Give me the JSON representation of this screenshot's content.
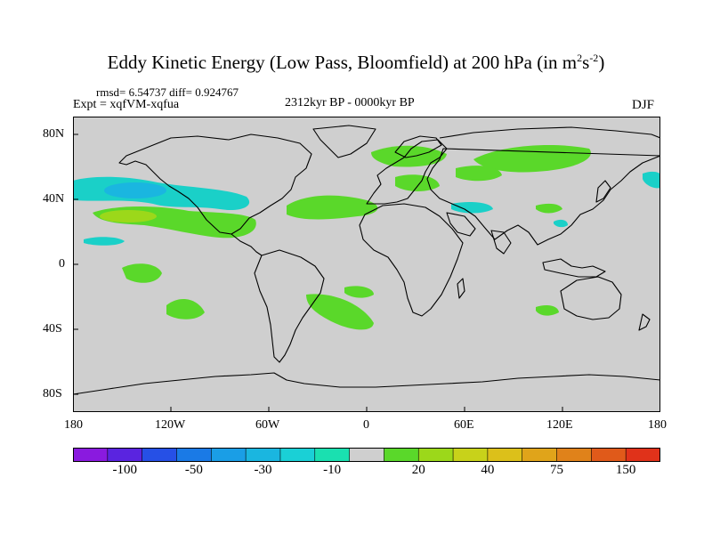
{
  "title": {
    "main": "Eddy Kinetic Energy (Low Pass, Bloomfield) at 200 hPa (in m",
    "sup1": "2",
    "mid": "s",
    "sup2": "-2",
    "end": ")"
  },
  "stats_line": "rmsd= 6.54737 diff= 0.924767",
  "experiment_line": "Expt = xqfVM-xqfua",
  "period_label": "2312kyr BP - 0000kyr BP",
  "season_label": "DJF",
  "y_axis_ticks": [
    "80N",
    "40N",
    "0",
    "40S",
    "80S"
  ],
  "x_axis_ticks": [
    "180",
    "120W",
    "60W",
    "0",
    "60E",
    "120E",
    "180"
  ],
  "colorbar": {
    "colors": [
      "#8a1adf",
      "#5a24e0",
      "#2650e6",
      "#1a7ae6",
      "#1a9ee6",
      "#1ab6e0",
      "#1ad0d6",
      "#1ae0b0",
      "#cfcfcf",
      "#5ad82a",
      "#9cd81a",
      "#c8d21a",
      "#dcc01a",
      "#e0a41a",
      "#e0821a",
      "#e05a1a",
      "#e0321a"
    ],
    "labels": [
      "-100",
      "-50",
      "-30",
      "-10",
      "20",
      "40",
      "75",
      "150"
    ]
  },
  "map_colors": {
    "background": "#cfcfcf",
    "positive_light": "#5ad82a",
    "positive_mid": "#9cd81a",
    "negative": "#1ad0c8",
    "negative_strong": "#1ab6e0"
  }
}
